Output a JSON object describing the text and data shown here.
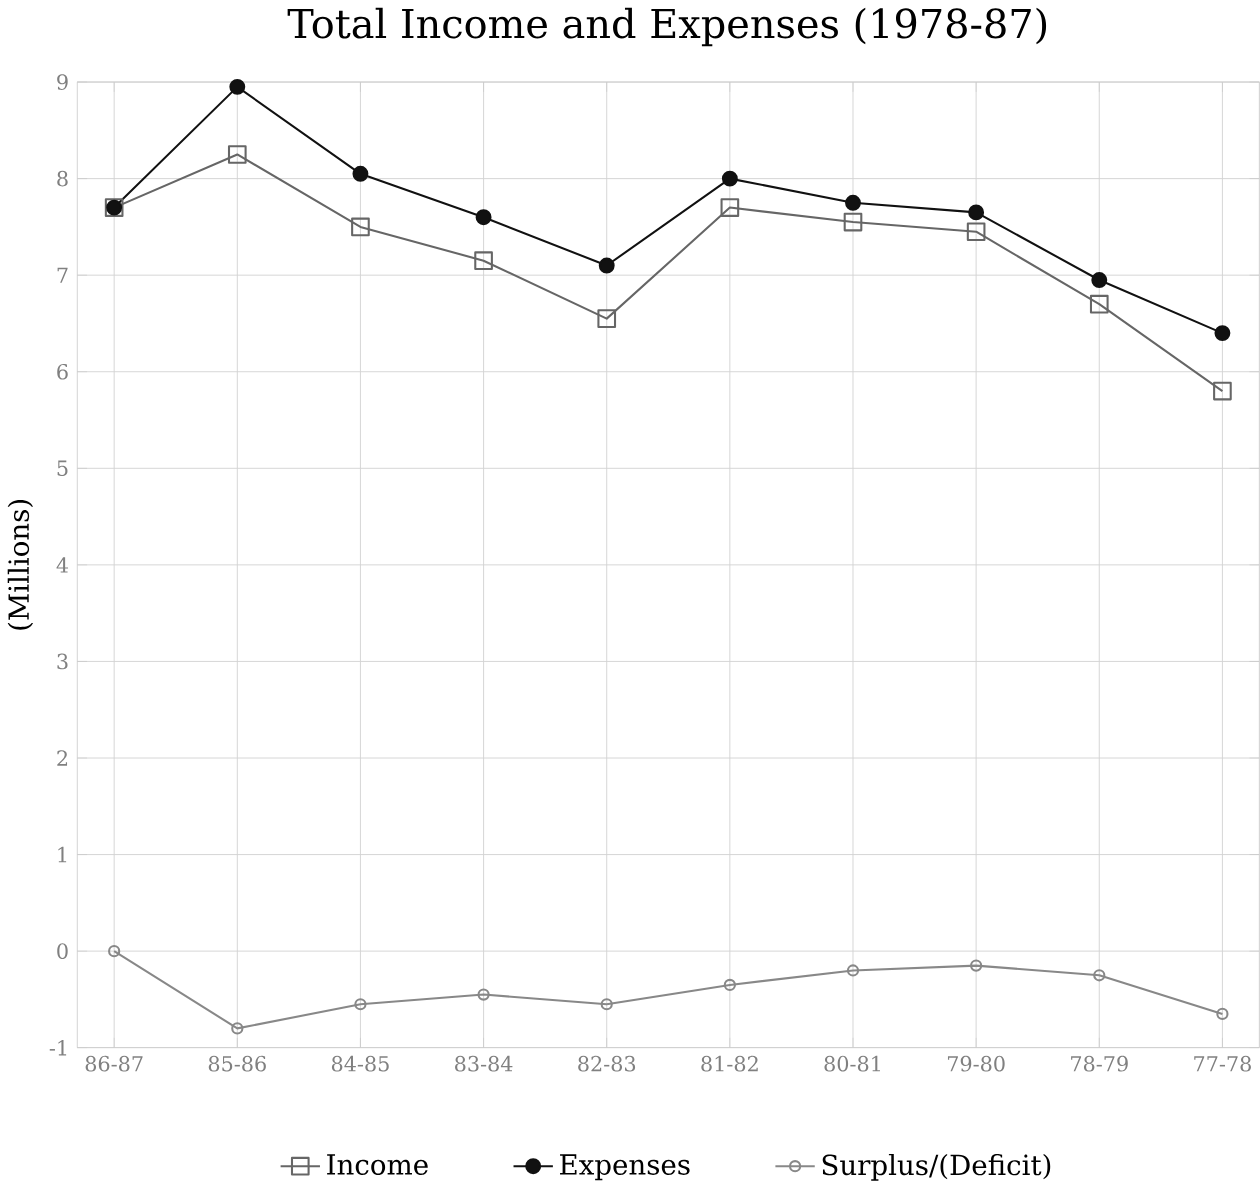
{
  "chart_data": {
    "type": "line",
    "title": "Total Income and Expenses (1978-87)",
    "ylabel": "(Millions)",
    "categories": [
      "86-87",
      "85-86",
      "84-85",
      "83-84",
      "82-83",
      "81-82",
      "80-81",
      "79-80",
      "78-79",
      "77-78"
    ],
    "series": [
      {
        "name": "Income",
        "color": "#666666",
        "marker": "square",
        "values": [
          7.7,
          8.25,
          7.5,
          7.15,
          6.55,
          7.7,
          7.55,
          7.45,
          6.7,
          5.8
        ]
      },
      {
        "name": "Expenses",
        "color": "#111111",
        "marker": "circle",
        "values": [
          7.7,
          8.95,
          8.05,
          7.6,
          7.1,
          8.0,
          7.75,
          7.65,
          6.95,
          6.4
        ]
      },
      {
        "name": "Surplus/(Deficit)",
        "color": "#888888",
        "marker": "open circle",
        "values": [
          0,
          -0.8,
          -0.55,
          -0.45,
          -0.55,
          -0.35,
          -0.2,
          -0.15,
          -0.25,
          -0.65
        ]
      }
    ],
    "ylim": [
      -1,
      9
    ],
    "yticks": [
      -1,
      0,
      1,
      2,
      3,
      4,
      5,
      6,
      7,
      8,
      9
    ],
    "grid": true,
    "legend": "bottom"
  }
}
